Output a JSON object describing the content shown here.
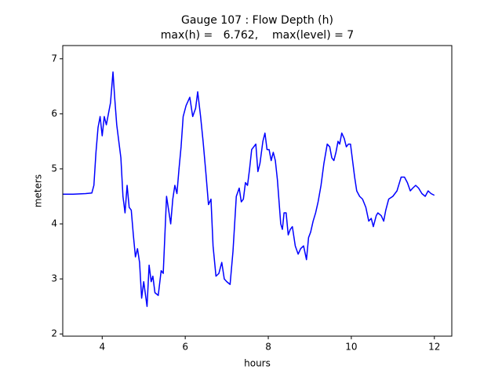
{
  "chart_data": {
    "type": "line",
    "title": "Gauge 107 : Flow Depth (h)",
    "subtitle": "max(h) =   6.762,    max(level) = 7",
    "xlabel": "hours",
    "ylabel": "meters",
    "xlim": [
      3.05,
      12.42
    ],
    "ylim": [
      1.96,
      7.24
    ],
    "xticks": [
      4,
      6,
      8,
      10,
      12
    ],
    "yticks": [
      2,
      3,
      4,
      5,
      6,
      7
    ],
    "grid": false,
    "series": [
      {
        "name": "h",
        "color": "#0000ff",
        "x": [
          3.05,
          3.3,
          3.6,
          3.75,
          3.8,
          3.85,
          3.9,
          3.95,
          4.0,
          4.05,
          4.1,
          4.15,
          4.2,
          4.26,
          4.3,
          4.35,
          4.4,
          4.45,
          4.5,
          4.55,
          4.6,
          4.65,
          4.7,
          4.75,
          4.8,
          4.85,
          4.9,
          4.95,
          5.0,
          5.08,
          5.13,
          5.18,
          5.22,
          5.27,
          5.35,
          5.42,
          5.47,
          5.55,
          5.6,
          5.65,
          5.7,
          5.75,
          5.8,
          5.85,
          5.9,
          5.95,
          6.02,
          6.11,
          6.18,
          6.25,
          6.3,
          6.37,
          6.43,
          6.5,
          6.56,
          6.62,
          6.67,
          6.74,
          6.81,
          6.88,
          6.94,
          7.0,
          7.08,
          7.15,
          7.23,
          7.3,
          7.35,
          7.4,
          7.45,
          7.5,
          7.55,
          7.6,
          7.7,
          7.75,
          7.8,
          7.87,
          7.92,
          7.97,
          8.02,
          8.07,
          8.12,
          8.17,
          8.22,
          8.3,
          8.34,
          8.38,
          8.43,
          8.48,
          8.53,
          8.58,
          8.65,
          8.72,
          8.78,
          8.85,
          8.92,
          8.97,
          9.02,
          9.08,
          9.14,
          9.2,
          9.27,
          9.34,
          9.42,
          9.48,
          9.53,
          9.58,
          9.63,
          9.68,
          9.72,
          9.77,
          9.83,
          9.88,
          9.93,
          9.98,
          10.03,
          10.08,
          10.13,
          10.2,
          10.27,
          10.35,
          10.42,
          10.48,
          10.53,
          10.6,
          10.64,
          10.72,
          10.78,
          10.83,
          10.9,
          11.0,
          11.1,
          11.2,
          11.28,
          11.35,
          11.42,
          11.48,
          11.55,
          11.62,
          11.7,
          11.78,
          11.85,
          11.92,
          12.0
        ],
        "values": [
          4.54,
          4.54,
          4.55,
          4.56,
          4.7,
          5.3,
          5.75,
          5.95,
          5.6,
          5.95,
          5.8,
          6.0,
          6.2,
          6.76,
          6.3,
          5.8,
          5.5,
          5.2,
          4.5,
          4.2,
          4.7,
          4.3,
          4.25,
          3.8,
          3.4,
          3.55,
          3.3,
          2.65,
          2.95,
          2.5,
          3.25,
          2.95,
          3.05,
          2.75,
          2.7,
          3.15,
          3.1,
          4.5,
          4.25,
          4.0,
          4.45,
          4.7,
          4.55,
          5.0,
          5.4,
          5.95,
          6.15,
          6.3,
          5.95,
          6.1,
          6.4,
          5.95,
          5.5,
          4.9,
          4.35,
          4.45,
          3.6,
          3.05,
          3.1,
          3.3,
          3.0,
          2.95,
          2.9,
          3.5,
          4.5,
          4.65,
          4.4,
          4.45,
          4.75,
          4.7,
          5.0,
          5.35,
          5.45,
          4.95,
          5.1,
          5.5,
          5.65,
          5.35,
          5.35,
          5.15,
          5.3,
          5.15,
          4.8,
          4.0,
          3.9,
          4.2,
          4.2,
          3.8,
          3.9,
          3.95,
          3.6,
          3.45,
          3.55,
          3.6,
          3.35,
          3.75,
          3.85,
          4.05,
          4.2,
          4.4,
          4.7,
          5.1,
          5.45,
          5.4,
          5.2,
          5.15,
          5.3,
          5.5,
          5.45,
          5.65,
          5.55,
          5.4,
          5.45,
          5.45,
          5.15,
          4.85,
          4.6,
          4.5,
          4.45,
          4.3,
          4.05,
          4.1,
          3.95,
          4.15,
          4.2,
          4.15,
          4.05,
          4.25,
          4.45,
          4.5,
          4.6,
          4.85,
          4.85,
          4.75,
          4.6,
          4.65,
          4.7,
          4.65,
          4.55,
          4.5,
          4.6,
          4.55,
          4.52
        ]
      }
    ]
  }
}
